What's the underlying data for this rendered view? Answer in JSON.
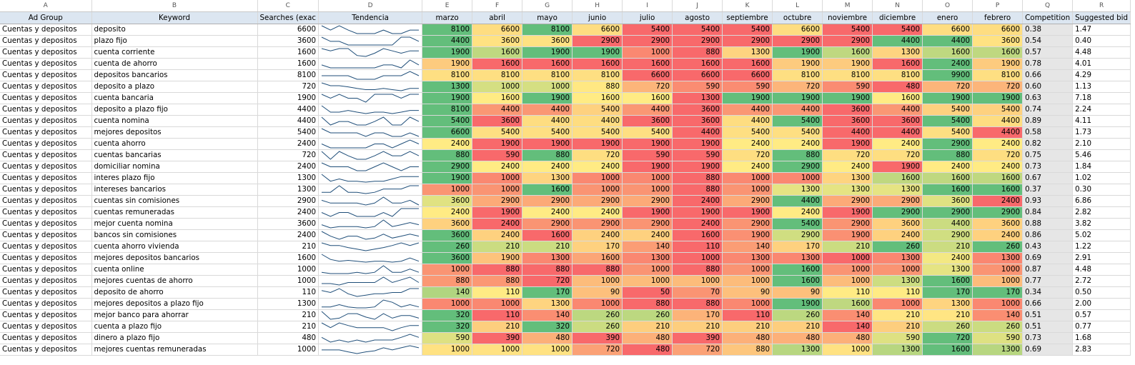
{
  "column_letters": [
    "A",
    "B",
    "C",
    "D",
    "E",
    "F",
    "G",
    "H",
    "I",
    "J",
    "K",
    "L",
    "M",
    "N",
    "O",
    "P",
    "Q",
    "R"
  ],
  "headers": {
    "ad_group": "Ad Group",
    "keyword": "Keyword",
    "searches": "Searches (exac",
    "tendencia": "Tendencia",
    "months": [
      "marzo",
      "abril",
      "mayo",
      "junio",
      "julio",
      "agosto",
      "septiembre",
      "octubre",
      "noviembre",
      "diciembre",
      "enero",
      "febrero"
    ],
    "competition": "Competition",
    "bid": "Suggested bid"
  },
  "colors": {
    "green": "#63be7b",
    "yellow": "#ffeb84",
    "red": "#f8696b",
    "header_bg": "#dce6f1",
    "competition_bg": "#e6e6e6",
    "sparkline": "#1f4e79"
  },
  "rows": [
    {
      "group": "Cuentas y depositos",
      "keyword": "deposito",
      "searches": "6600",
      "m": [
        8100,
        6600,
        8100,
        6600,
        5400,
        5400,
        5400,
        6600,
        5400,
        5400,
        6600,
        6600
      ],
      "comp": "0.38",
      "bid": "1.47"
    },
    {
      "group": "Cuentas y depositos",
      "keyword": "plazo fijo",
      "searches": "3600",
      "m": [
        4400,
        3600,
        3600,
        2900,
        2900,
        2900,
        2900,
        2900,
        2900,
        4400,
        4400,
        3600
      ],
      "comp": "0.54",
      "bid": "0.40"
    },
    {
      "group": "Cuentas y depositos",
      "keyword": "cuenta corriente",
      "searches": "1600",
      "m": [
        1900,
        1600,
        1900,
        1900,
        1000,
        880,
        1300,
        1900,
        1600,
        1300,
        1600,
        1600
      ],
      "comp": "0.57",
      "bid": "4.48"
    },
    {
      "group": "Cuentas y depositos",
      "keyword": "cuenta de ahorro",
      "searches": "1600",
      "m": [
        1900,
        1600,
        1600,
        1600,
        1600,
        1600,
        1600,
        1900,
        1900,
        1600,
        2400,
        1900
      ],
      "comp": "0.78",
      "bid": "4.01"
    },
    {
      "group": "Cuentas y depositos",
      "keyword": "depositos bancarios",
      "searches": "8100",
      "m": [
        8100,
        8100,
        8100,
        8100,
        6600,
        6600,
        6600,
        8100,
        8100,
        8100,
        9900,
        8100
      ],
      "comp": "0.66",
      "bid": "4.29"
    },
    {
      "group": "Cuentas y depositos",
      "keyword": "deposito a plazo",
      "searches": "720",
      "m": [
        1300,
        1000,
        1000,
        880,
        720,
        590,
        590,
        720,
        590,
        480,
        720,
        720
      ],
      "comp": "0.60",
      "bid": "1.13"
    },
    {
      "group": "Cuentas y depositos",
      "keyword": "cuenta bancaria",
      "searches": "1900",
      "m": [
        1900,
        1600,
        1900,
        1600,
        1600,
        1300,
        1900,
        1900,
        1900,
        1600,
        1900,
        1900
      ],
      "comp": "0.63",
      "bid": "7.18"
    },
    {
      "group": "Cuentas y depositos",
      "keyword": "deposito a plazo fijo",
      "searches": "4400",
      "m": [
        8100,
        4400,
        4400,
        5400,
        4400,
        3600,
        4400,
        4400,
        3600,
        4400,
        5400,
        5400
      ],
      "comp": "0.74",
      "bid": "2.24"
    },
    {
      "group": "Cuentas y depositos",
      "keyword": "cuenta nomina",
      "searches": "4400",
      "m": [
        5400,
        3600,
        4400,
        4400,
        3600,
        3600,
        4400,
        5400,
        3600,
        3600,
        5400,
        4400
      ],
      "comp": "0.89",
      "bid": "4.11"
    },
    {
      "group": "Cuentas y depositos",
      "keyword": "mejores depositos",
      "searches": "5400",
      "m": [
        6600,
        5400,
        5400,
        5400,
        5400,
        4400,
        5400,
        5400,
        4400,
        4400,
        5400,
        4400
      ],
      "comp": "0.58",
      "bid": "1.73"
    },
    {
      "group": "Cuentas y depositos",
      "keyword": "cuenta ahorro",
      "searches": "2400",
      "m": [
        2400,
        1900,
        1900,
        1900,
        1900,
        1900,
        2400,
        2400,
        1900,
        2400,
        2900,
        2400
      ],
      "comp": "0.82",
      "bid": "2.10"
    },
    {
      "group": "Cuentas y depositos",
      "keyword": "cuentas bancarias",
      "searches": "720",
      "m": [
        880,
        590,
        880,
        720,
        590,
        590,
        720,
        880,
        720,
        720,
        880,
        720
      ],
      "comp": "0.75",
      "bid": "5.46"
    },
    {
      "group": "Cuentas y depositos",
      "keyword": "domiciliar nomina",
      "searches": "2400",
      "m": [
        2900,
        2400,
        2400,
        2400,
        1900,
        1900,
        2400,
        2900,
        2400,
        1900,
        2400,
        2400
      ],
      "comp": "0.73",
      "bid": "1.84"
    },
    {
      "group": "Cuentas y depositos",
      "keyword": "interes plazo fijo",
      "searches": "1300",
      "m": [
        1900,
        1000,
        1300,
        1000,
        1000,
        880,
        1000,
        1000,
        1300,
        1600,
        1600,
        1600
      ],
      "comp": "0.67",
      "bid": "1.02"
    },
    {
      "group": "Cuentas y depositos",
      "keyword": "intereses bancarios",
      "searches": "1300",
      "m": [
        1000,
        1000,
        1600,
        1000,
        1000,
        880,
        1000,
        1300,
        1300,
        1300,
        1600,
        1600
      ],
      "comp": "0.37",
      "bid": "0.30"
    },
    {
      "group": "Cuentas y depositos",
      "keyword": "cuentas sin comisiones",
      "searches": "2900",
      "m": [
        3600,
        2900,
        2900,
        2900,
        2900,
        2400,
        2900,
        4400,
        2900,
        2900,
        3600,
        2400
      ],
      "comp": "0.93",
      "bid": "6.86"
    },
    {
      "group": "Cuentas y depositos",
      "keyword": "cuentas remuneradas",
      "searches": "2400",
      "m": [
        2400,
        1900,
        2400,
        2400,
        1900,
        1900,
        1900,
        2400,
        1900,
        2900,
        2900,
        2900
      ],
      "comp": "0.84",
      "bid": "2.82"
    },
    {
      "group": "Cuentas y depositos",
      "keyword": "mejor cuenta nomina",
      "searches": "3600",
      "m": [
        3600,
        2400,
        2900,
        2900,
        2900,
        2400,
        2900,
        5400,
        2900,
        3600,
        4400,
        3600
      ],
      "comp": "0.88",
      "bid": "3.82"
    },
    {
      "group": "Cuentas y depositos",
      "keyword": "bancos sin comisiones",
      "searches": "2400",
      "m": [
        3600,
        2400,
        1600,
        2400,
        2400,
        1600,
        1900,
        2900,
        1900,
        2400,
        2900,
        2400
      ],
      "comp": "0.86",
      "bid": "5.02"
    },
    {
      "group": "Cuentas y depositos",
      "keyword": "cuenta ahorro vivienda",
      "searches": "210",
      "m": [
        260,
        210,
        210,
        170,
        140,
        110,
        140,
        170,
        210,
        260,
        210,
        260
      ],
      "comp": "0.43",
      "bid": "1.22"
    },
    {
      "group": "Cuentas y depositos",
      "keyword": "mejores depositos bancarios",
      "searches": "1600",
      "m": [
        3600,
        1900,
        1300,
        1600,
        1300,
        1000,
        1300,
        1300,
        1000,
        1300,
        2400,
        1300
      ],
      "comp": "0.69",
      "bid": "2.91"
    },
    {
      "group": "Cuentas y depositos",
      "keyword": "cuenta online",
      "searches": "1000",
      "m": [
        1000,
        880,
        880,
        880,
        1000,
        880,
        1000,
        1600,
        1000,
        1000,
        1300,
        1000
      ],
      "comp": "0.87",
      "bid": "4.48"
    },
    {
      "group": "Cuentas y depositos",
      "keyword": "mejores cuentas de ahorro",
      "searches": "1000",
      "m": [
        880,
        880,
        720,
        1000,
        1000,
        1000,
        1000,
        1600,
        1000,
        1300,
        1600,
        1000
      ],
      "comp": "0.77",
      "bid": "2.72"
    },
    {
      "group": "Cuentas y depositos",
      "keyword": "deposito de ahorro",
      "searches": "110",
      "m": [
        140,
        110,
        170,
        90,
        50,
        70,
        90,
        90,
        110,
        110,
        170,
        170
      ],
      "comp": "0.34",
      "bid": "0.50"
    },
    {
      "group": "Cuentas y depositos",
      "keyword": "mejores depositos a plazo fijo",
      "searches": "1300",
      "m": [
        1000,
        1000,
        1300,
        1000,
        880,
        880,
        1000,
        1900,
        1600,
        1000,
        1300,
        1000
      ],
      "comp": "0.66",
      "bid": "2.00"
    },
    {
      "group": "Cuentas y depositos",
      "keyword": "mejor banco para ahorrar",
      "searches": "210",
      "m": [
        320,
        110,
        140,
        260,
        260,
        170,
        110,
        260,
        140,
        210,
        210,
        140
      ],
      "comp": "0.51",
      "bid": "0.57"
    },
    {
      "group": "Cuentas y depositos",
      "keyword": "cuenta a plazo fijo",
      "searches": "210",
      "m": [
        320,
        210,
        320,
        260,
        210,
        210,
        210,
        210,
        140,
        210,
        260,
        260
      ],
      "comp": "0.51",
      "bid": "0.77"
    },
    {
      "group": "Cuentas y depositos",
      "keyword": "dinero a plazo fijo",
      "searches": "480",
      "m": [
        590,
        390,
        480,
        390,
        480,
        390,
        480,
        480,
        480,
        590,
        720,
        590
      ],
      "comp": "0.73",
      "bid": "1.68"
    },
    {
      "group": "Cuentas y depositos",
      "keyword": "mejores cuentas remuneradas",
      "searches": "1000",
      "m": [
        1000,
        1000,
        1000,
        720,
        480,
        720,
        880,
        1300,
        1000,
        1300,
        1600,
        1300
      ],
      "comp": "0.69",
      "bid": "2.83"
    }
  ]
}
